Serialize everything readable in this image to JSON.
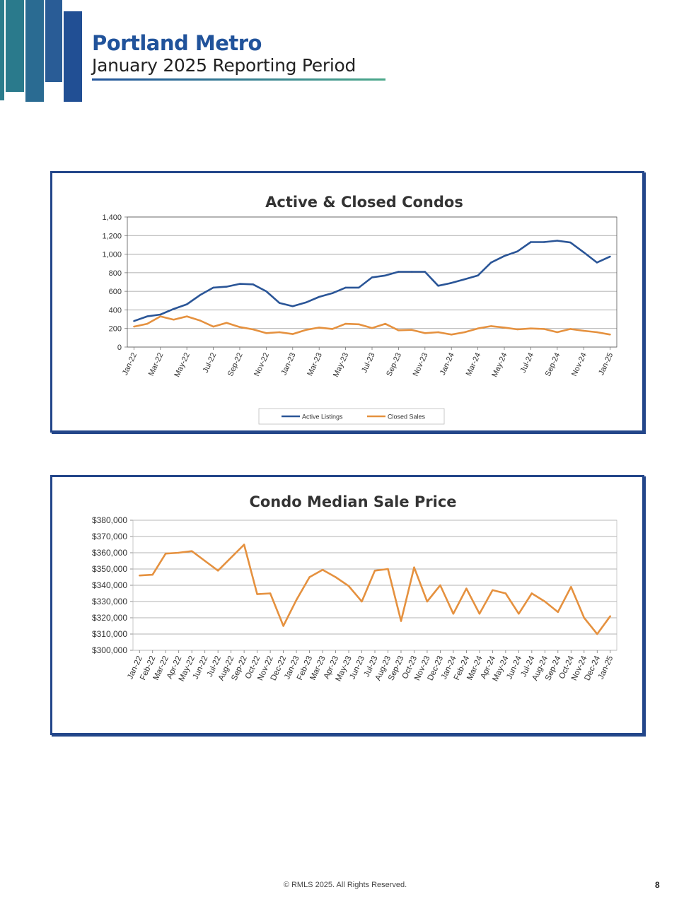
{
  "header": {
    "title": "Portland Metro",
    "subtitle": "January 2025 Reporting Period"
  },
  "footer": {
    "copyright": "© RMLS 2025. All Rights Reserved.",
    "page_number": "8"
  },
  "colors": {
    "active": "#2a5597",
    "closed": "#e5913f",
    "frame": "#23468a"
  },
  "chart_data": [
    {
      "type": "line",
      "title": "Active & Closed Condos",
      "xlabel": "",
      "ylabel": "",
      "ylim": [
        0,
        1400
      ],
      "yticks": [
        0,
        200,
        400,
        600,
        800,
        1000,
        1200,
        1400
      ],
      "ytick_labels": [
        "0",
        "200",
        "400",
        "600",
        "800",
        "1,000",
        "1,200",
        "1,400"
      ],
      "categories": [
        "Jan-22",
        "Feb-22",
        "Mar-22",
        "Apr-22",
        "May-22",
        "Jun-22",
        "Jul-22",
        "Aug-22",
        "Sep-22",
        "Oct-22",
        "Nov-22",
        "Dec-22",
        "Jan-23",
        "Feb-23",
        "Mar-23",
        "Apr-23",
        "May-23",
        "Jun-23",
        "Jul-23",
        "Aug-23",
        "Sep-23",
        "Oct-23",
        "Nov-23",
        "Dec-23",
        "Jan-24",
        "Feb-24",
        "Mar-24",
        "Apr-24",
        "May-24",
        "Jun-24",
        "Jul-24",
        "Aug-24",
        "Sep-24",
        "Oct-24",
        "Nov-24",
        "Dec-24",
        "Jan-25"
      ],
      "tick_labels_shown": [
        "Jan-22",
        "Mar-22",
        "May-22",
        "Jul-22",
        "Sep-22",
        "Nov-22",
        "Jan-23",
        "Mar-23",
        "May-23",
        "Jul-23",
        "Sep-23",
        "Nov-23",
        "Jan-24",
        "Mar-24",
        "May-24",
        "Jul-24",
        "Sep-24",
        "Nov-24",
        "Jan-25"
      ],
      "grid": true,
      "legend": "bottom",
      "series": [
        {
          "name": "Active Listings",
          "color": "#2a5597",
          "values": [
            280,
            330,
            350,
            410,
            460,
            560,
            640,
            650,
            680,
            675,
            600,
            475,
            440,
            480,
            540,
            580,
            640,
            640,
            750,
            770,
            810,
            810,
            810,
            660,
            690,
            730,
            770,
            910,
            980,
            1030,
            1130,
            1130,
            1145,
            1125,
            1020,
            910,
            975
          ]
        },
        {
          "name": "Closed Sales",
          "color": "#e5913f",
          "values": [
            220,
            250,
            330,
            295,
            330,
            285,
            220,
            260,
            215,
            190,
            150,
            160,
            140,
            185,
            210,
            195,
            250,
            245,
            205,
            250,
            180,
            185,
            150,
            160,
            135,
            160,
            200,
            225,
            210,
            190,
            200,
            195,
            160,
            195,
            175,
            160,
            135
          ]
        }
      ]
    },
    {
      "type": "line",
      "title": "Condo Median Sale Price",
      "xlabel": "",
      "ylabel": "",
      "ylim": [
        300000,
        380000
      ],
      "yticks": [
        300000,
        310000,
        320000,
        330000,
        340000,
        350000,
        360000,
        370000,
        380000
      ],
      "ytick_labels": [
        "$300,000",
        "$310,000",
        "$320,000",
        "$330,000",
        "$340,000",
        "$350,000",
        "$360,000",
        "$370,000",
        "$380,000"
      ],
      "categories": [
        "Jan-22",
        "Feb-22",
        "Mar-22",
        "Apr-22",
        "May-22",
        "Jun-22",
        "Jul-22",
        "Aug-22",
        "Sep-22",
        "Oct-22",
        "Nov-22",
        "Dec-22",
        "Jan-23",
        "Feb-23",
        "Mar-23",
        "Apr-23",
        "May-23",
        "Jun-23",
        "Jul-23",
        "Aug-23",
        "Sep-23",
        "Oct-23",
        "Nov-23",
        "Dec-23",
        "Jan-24",
        "Feb-24",
        "Mar-24",
        "Apr-24",
        "May-24",
        "Jun-24",
        "Jul-24",
        "Aug-24",
        "Sep-24",
        "Oct-24",
        "Nov-24",
        "Dec-24",
        "Jan-25"
      ],
      "tick_labels_shown": [
        "Jan-22",
        "Feb-22",
        "Mar-22",
        "Apr-22",
        "May-22",
        "Jun-22",
        "Jul-22",
        "Aug-22",
        "Sep-22",
        "Oct-22",
        "Nov-22",
        "Dec-22",
        "Jan-23",
        "Feb-23",
        "Mar-23",
        "Apr-23",
        "May-23",
        "Jun-23",
        "Jul-23",
        "Aug-23",
        "Sep-23",
        "Oct-23",
        "Nov-23",
        "Dec-23",
        "Jan-24",
        "Feb-24",
        "Mar-24",
        "Apr-24",
        "May-24",
        "Jun-24",
        "Jul-24",
        "Aug-24",
        "Sep-24",
        "Oct-24",
        "Nov-24",
        "Dec-24",
        "Jan-25"
      ],
      "grid": true,
      "legend": "none",
      "series": [
        {
          "name": "",
          "color": "#e5913f",
          "values": [
            346000,
            346500,
            359500,
            360000,
            361000,
            355000,
            349000,
            357000,
            365000,
            334500,
            335000,
            315000,
            331000,
            345000,
            349500,
            345000,
            339500,
            330000,
            349000,
            350000,
            318000,
            351000,
            330000,
            340000,
            322500,
            338000,
            322500,
            337000,
            335000,
            322500,
            335000,
            330000,
            323500,
            339000,
            320000,
            310000,
            321000
          ]
        }
      ]
    }
  ]
}
